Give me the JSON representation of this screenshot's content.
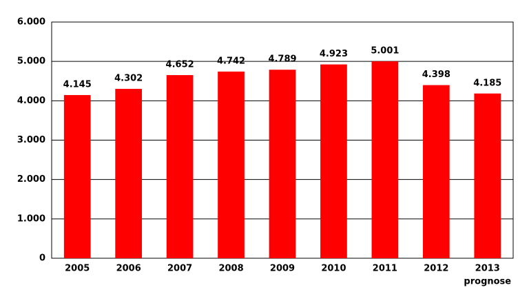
{
  "chart_data": {
    "type": "bar",
    "categories": [
      "2005",
      "2006",
      "2007",
      "2008",
      "2009",
      "2010",
      "2011",
      "2012",
      "2013"
    ],
    "values": [
      4145,
      4302,
      4652,
      4742,
      4789,
      4923,
      5001,
      4398,
      4185
    ],
    "value_labels": [
      "4.145",
      "4.302",
      "4.652",
      "4.742",
      "4.789",
      "4.923",
      "5.001",
      "4.398",
      "4.185"
    ],
    "color": "#ff0000",
    "annotations": [
      {
        "text": "prognose",
        "category": 8
      }
    ],
    "ylim": [
      0,
      6000
    ],
    "yticks": [
      {
        "value": 0,
        "label": "0"
      },
      {
        "value": 1000,
        "label": "1.000"
      },
      {
        "value": 2000,
        "label": "2.000"
      },
      {
        "value": 3000,
        "label": "3.000"
      },
      {
        "value": 4000,
        "label": "4.000"
      },
      {
        "value": 5000,
        "label": "5.000"
      },
      {
        "value": 6000,
        "label": "6.000"
      }
    ],
    "grid": true
  }
}
